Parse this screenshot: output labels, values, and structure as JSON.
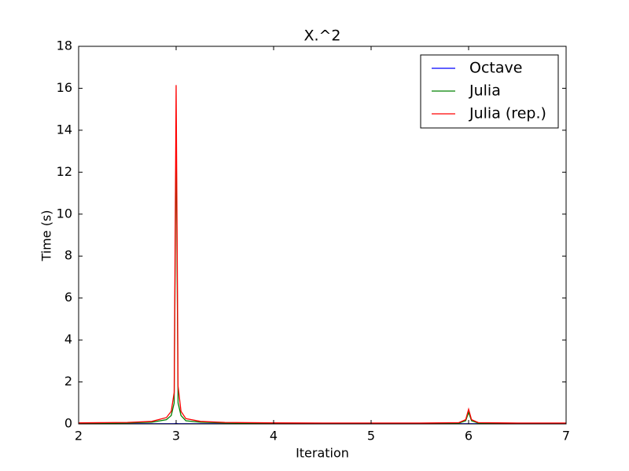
{
  "chart_data": {
    "type": "line",
    "title": "X.^2",
    "xlabel": "Iteration",
    "ylabel": "Time (s)",
    "x": [
      2,
      2.25,
      2.5,
      2.75,
      2.9,
      2.95,
      2.98,
      3.0,
      3.02,
      3.05,
      3.1,
      3.25,
      3.5,
      4,
      4.5,
      5,
      5.5,
      5.9,
      5.97,
      6.0,
      6.03,
      6.1,
      6.5,
      7
    ],
    "series": [
      {
        "name": "Octave",
        "color": "#0000ff",
        "values": [
          0.01,
          0.01,
          0.01,
          0.01,
          0.01,
          0.01,
          0.01,
          0.02,
          0.01,
          0.01,
          0.01,
          0.01,
          0.01,
          0.01,
          0.01,
          0.01,
          0.01,
          0.01,
          0.01,
          0.01,
          0.01,
          0.01,
          0.01,
          0.01
        ]
      },
      {
        "name": "Julia",
        "color": "#008000",
        "values": [
          0.03,
          0.04,
          0.05,
          0.08,
          0.2,
          0.4,
          1.0,
          14,
          1.0,
          0.4,
          0.15,
          0.08,
          0.05,
          0.03,
          0.03,
          0.03,
          0.03,
          0.04,
          0.15,
          0.55,
          0.15,
          0.04,
          0.03,
          0.03
        ]
      },
      {
        "name": "Julia (rep.)",
        "color": "#ff0000",
        "values": [
          0.05,
          0.06,
          0.07,
          0.12,
          0.3,
          0.6,
          1.5,
          16.15,
          1.8,
          0.6,
          0.25,
          0.12,
          0.07,
          0.05,
          0.04,
          0.04,
          0.04,
          0.06,
          0.2,
          0.7,
          0.2,
          0.06,
          0.04,
          0.04
        ]
      }
    ],
    "xlim": [
      2,
      7
    ],
    "xticks": [
      2,
      3,
      4,
      5,
      6,
      7
    ],
    "ylim": [
      0,
      18
    ],
    "yticks": [
      0,
      2,
      4,
      6,
      8,
      10,
      12,
      14,
      16,
      18
    ],
    "legend": "upper right"
  }
}
